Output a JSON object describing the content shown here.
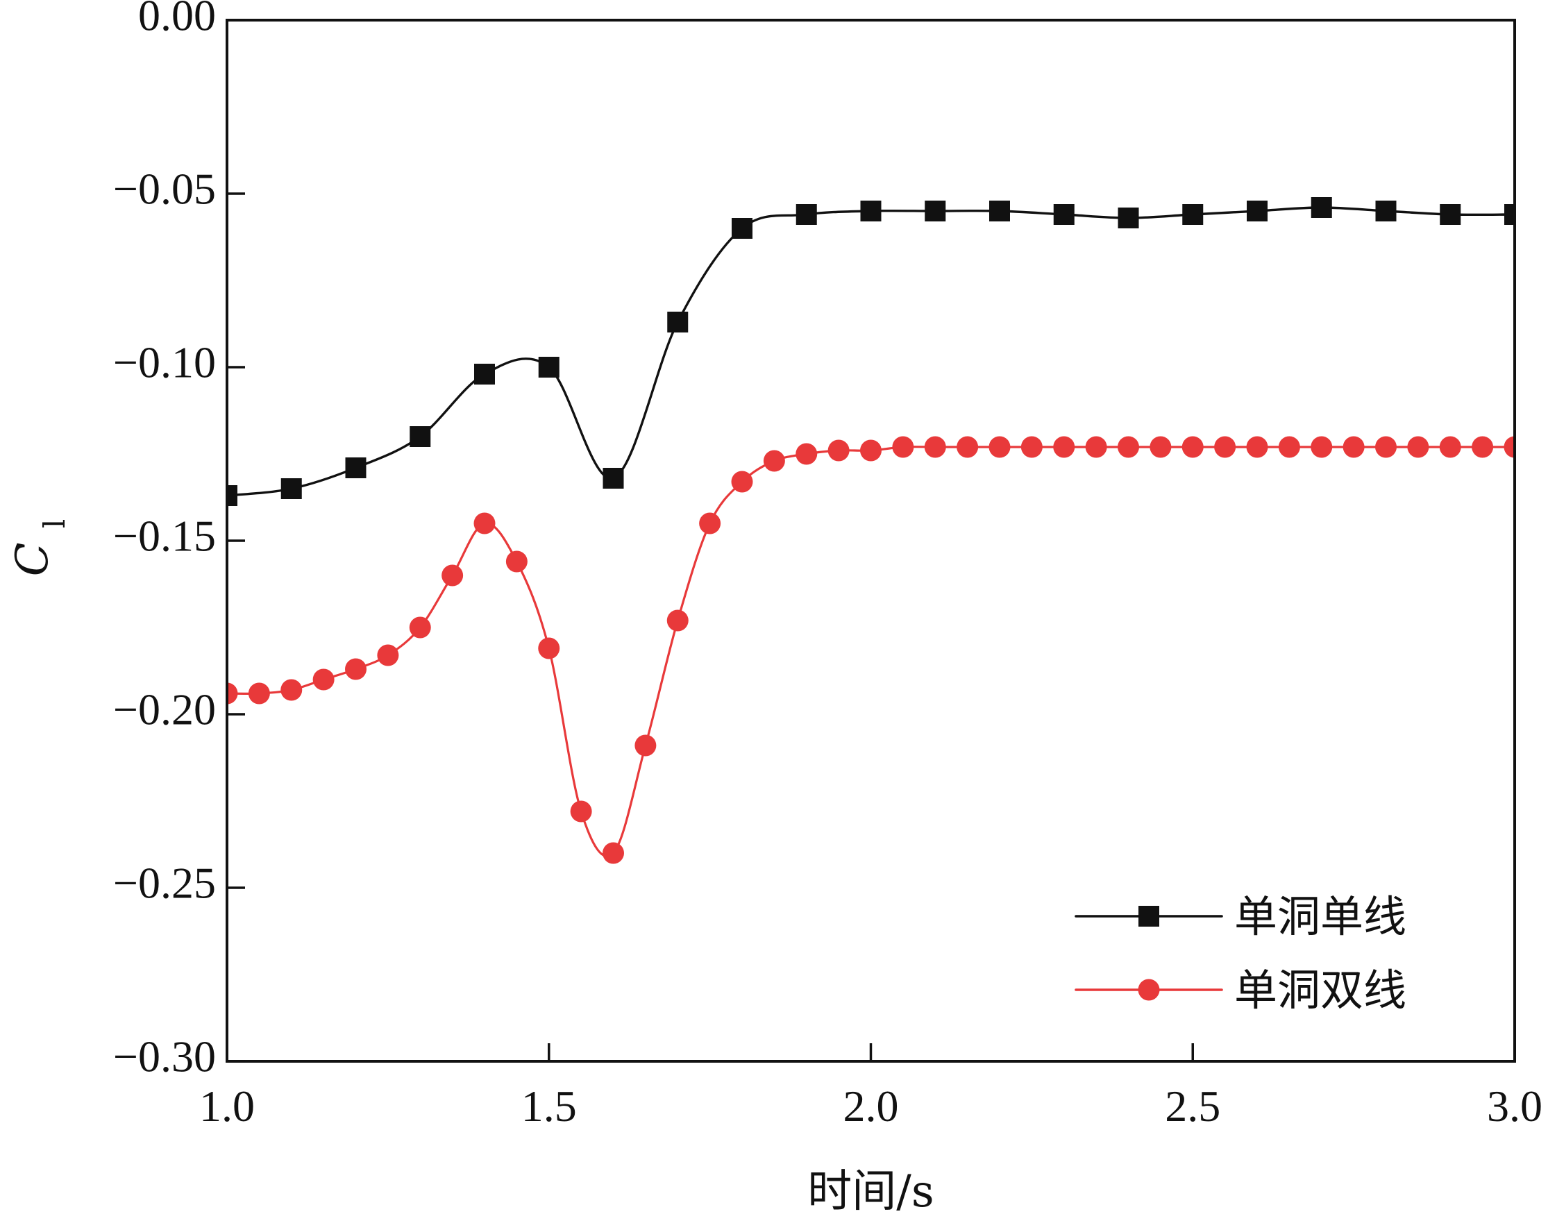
{
  "chart_data": {
    "type": "line",
    "xlabel": "时间/s",
    "ylabel": {
      "symbol": "C",
      "subscript": "l"
    },
    "xlim": [
      1.0,
      3.0
    ],
    "ylim": [
      -0.3,
      0.0
    ],
    "x_ticks": [
      {
        "value": 1.0,
        "label": "1.0"
      },
      {
        "value": 1.5,
        "label": "1.5"
      },
      {
        "value": 2.0,
        "label": "2.0"
      },
      {
        "value": 2.5,
        "label": "2.5"
      },
      {
        "value": 3.0,
        "label": "3.0"
      }
    ],
    "y_ticks": [
      {
        "value": 0.0,
        "label": "0.00"
      },
      {
        "value": -0.05,
        "label": "−0.05"
      },
      {
        "value": -0.1,
        "label": "−0.10"
      },
      {
        "value": -0.15,
        "label": "−0.15"
      },
      {
        "value": -0.2,
        "label": "−0.20"
      },
      {
        "value": -0.25,
        "label": "−0.25"
      },
      {
        "value": -0.3,
        "label": "−0.30"
      }
    ],
    "grid": false,
    "legend": "bottom-right",
    "series": [
      {
        "name": "单洞单线",
        "color": "#111111",
        "marker": "square",
        "x": [
          1.0,
          1.1,
          1.2,
          1.3,
          1.4,
          1.5,
          1.6,
          1.7,
          1.8,
          1.9,
          2.0,
          2.1,
          2.2,
          2.3,
          2.4,
          2.5,
          2.6,
          2.7,
          2.8,
          2.9,
          3.0
        ],
        "y": [
          -0.137,
          -0.135,
          -0.129,
          -0.12,
          -0.102,
          -0.1,
          -0.132,
          -0.087,
          -0.06,
          -0.056,
          -0.055,
          -0.055,
          -0.055,
          -0.056,
          -0.057,
          -0.056,
          -0.055,
          -0.054,
          -0.055,
          -0.056,
          -0.056
        ]
      },
      {
        "name": "单洞双线",
        "color": "#e8393a",
        "marker": "circle",
        "x": [
          1.0,
          1.05,
          1.1,
          1.15,
          1.2,
          1.25,
          1.3,
          1.35,
          1.4,
          1.45,
          1.5,
          1.55,
          1.6,
          1.65,
          1.7,
          1.75,
          1.8,
          1.85,
          1.9,
          1.95,
          2.0,
          2.05,
          2.1,
          2.15,
          2.2,
          2.25,
          2.3,
          2.35,
          2.4,
          2.45,
          2.5,
          2.55,
          2.6,
          2.65,
          2.7,
          2.75,
          2.8,
          2.85,
          2.9,
          2.95,
          3.0
        ],
        "y": [
          -0.194,
          -0.194,
          -0.193,
          -0.19,
          -0.187,
          -0.183,
          -0.175,
          -0.16,
          -0.145,
          -0.156,
          -0.181,
          -0.228,
          -0.24,
          -0.209,
          -0.173,
          -0.145,
          -0.133,
          -0.127,
          -0.125,
          -0.124,
          -0.124,
          -0.123,
          -0.123,
          -0.123,
          -0.123,
          -0.123,
          -0.123,
          -0.123,
          -0.123,
          -0.123,
          -0.123,
          -0.123,
          -0.123,
          -0.123,
          -0.123,
          -0.123,
          -0.123,
          -0.123,
          -0.123,
          -0.123,
          -0.123
        ]
      }
    ]
  }
}
